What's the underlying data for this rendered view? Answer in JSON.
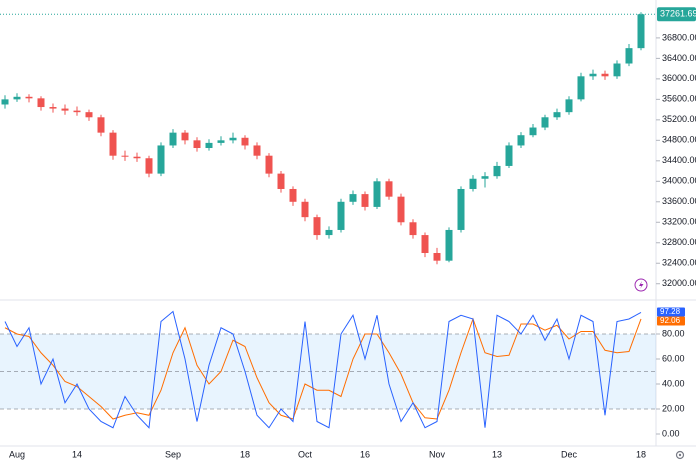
{
  "chart_data": [
    {
      "type": "candlestick",
      "categories": [
        null,
        "Aug",
        null,
        null,
        null,
        null,
        "14",
        null,
        null,
        null,
        null,
        null,
        null,
        null,
        "Sep",
        null,
        null,
        null,
        null,
        null,
        "18",
        null,
        null,
        null,
        null,
        "Oct",
        null,
        null,
        null,
        null,
        "16",
        null,
        null,
        null,
        null,
        null,
        "Nov",
        null,
        null,
        null,
        null,
        "13",
        null,
        null,
        null,
        null,
        null,
        "Dec",
        null,
        null,
        null,
        null,
        null,
        "18"
      ],
      "open": [
        35500,
        35600,
        35650,
        35620,
        35450,
        35420,
        35380,
        35350,
        35250,
        34950,
        34500,
        34480,
        34450,
        34150,
        34700,
        34950,
        34800,
        34650,
        34750,
        34800,
        34850,
        34700,
        34500,
        34150,
        33850,
        33600,
        33300,
        32950,
        33050,
        33600,
        33750,
        33500,
        34000,
        33700,
        33200,
        32950,
        32600,
        32450,
        33050,
        33850,
        34050,
        34100,
        34300,
        34700,
        34900,
        35050,
        35250,
        35350,
        35600,
        36050,
        36100,
        36050,
        36300,
        36600
      ],
      "high": [
        35680,
        35720,
        35700,
        35660,
        35520,
        35500,
        35460,
        35400,
        35300,
        35000,
        34600,
        34560,
        34500,
        34760,
        35020,
        35000,
        34860,
        34820,
        34880,
        34950,
        34900,
        34760,
        34550,
        34200,
        33900,
        33660,
        33350,
        33120,
        33660,
        33820,
        33800,
        34060,
        34050,
        33760,
        33260,
        33000,
        32700,
        33100,
        33900,
        34120,
        34180,
        34380,
        34760,
        34960,
        35120,
        35300,
        35420,
        35660,
        36120,
        36180,
        36160,
        36360,
        36680,
        37300
      ],
      "low": [
        35420,
        35550,
        35540,
        35380,
        35340,
        35300,
        35280,
        35180,
        34880,
        34420,
        34400,
        34380,
        34080,
        34100,
        34650,
        34720,
        34580,
        34600,
        34700,
        34740,
        34620,
        34430,
        34080,
        33780,
        33520,
        33220,
        32860,
        32880,
        33000,
        33540,
        33430,
        33460,
        33640,
        33140,
        32880,
        32520,
        32380,
        32420,
        33000,
        33800,
        33880,
        34050,
        34260,
        34650,
        34860,
        35000,
        35200,
        35300,
        35560,
        35980,
        35980,
        36000,
        36250,
        36560
      ],
      "close": [
        35600,
        35650,
        35620,
        35450,
        35420,
        35380,
        35350,
        35250,
        34950,
        34500,
        34480,
        34450,
        34150,
        34700,
        34950,
        34800,
        34650,
        34750,
        34800,
        34850,
        34700,
        34500,
        34150,
        33850,
        33600,
        33300,
        32950,
        33050,
        33600,
        33750,
        33500,
        34000,
        33700,
        33200,
        32950,
        32600,
        32450,
        33050,
        33850,
        34050,
        34100,
        34300,
        34700,
        34900,
        35050,
        35250,
        35350,
        35600,
        36050,
        36100,
        36050,
        36300,
        36600,
        37261.69
      ],
      "up_color": "#26a69a",
      "down_color": "#ef5350",
      "ylim": [
        31780,
        37540
      ],
      "yticks": [
        {
          "value": 32000,
          "label": "32000.00"
        },
        {
          "value": 32400,
          "label": "32400.00"
        },
        {
          "value": 32800,
          "label": "32800.00"
        },
        {
          "value": 33200,
          "label": "33200.00"
        },
        {
          "value": 33600,
          "label": "33600.00"
        },
        {
          "value": 34000,
          "label": "34000.00"
        },
        {
          "value": 34400,
          "label": "34400.00"
        },
        {
          "value": 34800,
          "label": "34800.00"
        },
        {
          "value": 35200,
          "label": "35200.00"
        },
        {
          "value": 35600,
          "label": "35600.00"
        },
        {
          "value": 36000,
          "label": "36000.00"
        },
        {
          "value": 36400,
          "label": "36400.00"
        },
        {
          "value": 36800,
          "label": "36800.00"
        }
      ]
    },
    {
      "type": "line",
      "series": [
        {
          "color": "#ff6d00",
          "values": [
            85,
            80,
            78,
            65,
            55,
            42,
            38,
            30,
            22,
            12,
            15,
            17,
            15,
            35,
            65,
            85,
            55,
            40,
            50,
            75,
            70,
            45,
            25,
            15,
            12,
            40,
            35,
            35,
            30,
            60,
            80,
            80,
            65,
            48,
            25,
            13,
            12,
            35,
            65,
            92,
            65,
            62,
            63,
            88,
            88,
            83,
            87,
            76,
            82,
            82,
            67,
            65,
            66,
            92.06
          ]
        },
        {
          "color": "#2962ff",
          "values": [
            90,
            70,
            85,
            40,
            60,
            25,
            40,
            20,
            10,
            5,
            30,
            15,
            5,
            90,
            98,
            60,
            10,
            55,
            85,
            80,
            50,
            15,
            5,
            20,
            10,
            90,
            10,
            5,
            80,
            95,
            60,
            95,
            40,
            10,
            25,
            5,
            10,
            90,
            95,
            92,
            5,
            95,
            90,
            80,
            95,
            75,
            92,
            60,
            95,
            90,
            15,
            90,
            92,
            97.28
          ]
        }
      ],
      "levels": [
        20,
        50,
        80
      ],
      "band_color": "#2196f3",
      "ylim": [
        -9.6,
        104.8
      ],
      "yticks": [
        {
          "value": 0,
          "label": "0.00"
        },
        {
          "value": 20,
          "label": "20.00"
        },
        {
          "value": 40,
          "label": "40.00"
        },
        {
          "value": 60,
          "label": "60.00"
        },
        {
          "value": 80,
          "label": "80.00"
        }
      ]
    }
  ]
}
